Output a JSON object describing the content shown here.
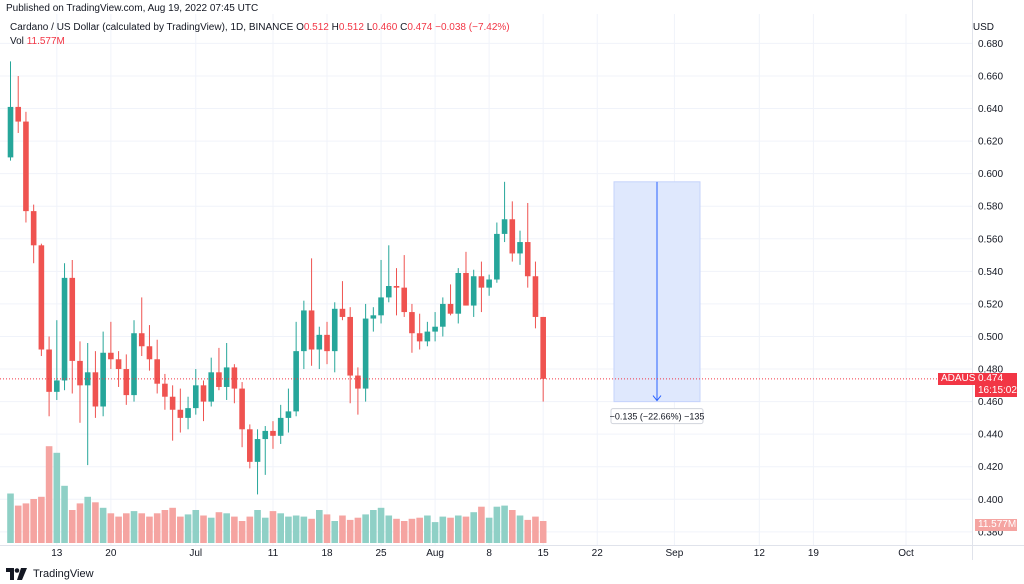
{
  "header": {
    "published": "Published on TradingView.com, Aug 19, 2022 07:45 UTC",
    "symbol_desc": "Cardano / US Dollar (calculated by TradingView), 1D, BINANCE",
    "o_label": "O",
    "o_val": "0.512",
    "h_label": "H",
    "h_val": "0.512",
    "l_label": "L",
    "l_val": "0.460",
    "c_label": "C",
    "c_val": "0.474",
    "change": "−0.038 (−7.42%)",
    "vol_label": "Vol",
    "vol_val": "11.577M"
  },
  "price_axis": {
    "currency": "USD"
  },
  "last_price": {
    "ticker": "ADAUSD",
    "price": "0.474",
    "countdown": "16:15:02"
  },
  "volume_badge": "11.577M",
  "measure": {
    "label": "−0.135 (−22.66%) −135",
    "from": 0.595,
    "to": 0.46
  },
  "footer": {
    "brand": "TradingView"
  },
  "colors": {
    "up": "#26a69a",
    "down": "#ef5350",
    "vol_up": "#8fd0c6",
    "vol_down": "#f5a4a1",
    "measure_fill": "#dfe8fd",
    "measure_line": "#2962ff"
  },
  "chart_data": {
    "type": "candlestick",
    "symbol": "ADAUSD",
    "ylim": [
      0.375,
      0.695
    ],
    "yticks": [
      "0.680",
      "0.660",
      "0.640",
      "0.620",
      "0.600",
      "0.580",
      "0.560",
      "0.540",
      "0.520",
      "0.500",
      "0.480",
      "0.460",
      "0.440",
      "0.420",
      "0.400",
      "0.380"
    ],
    "xticks": [
      {
        "i": 6,
        "label": "13"
      },
      {
        "i": 13,
        "label": "20"
      },
      {
        "i": 24,
        "label": "Jul"
      },
      {
        "i": 34,
        "label": "11"
      },
      {
        "i": 41,
        "label": "18"
      },
      {
        "i": 48,
        "label": "25"
      },
      {
        "i": 55,
        "label": "Aug"
      },
      {
        "i": 62,
        "label": "8"
      },
      {
        "i": 69,
        "label": "15"
      },
      {
        "i": 76,
        "label": "22"
      },
      {
        "i": 86,
        "label": "Sep"
      },
      {
        "i": 97,
        "label": "12"
      },
      {
        "i": 104,
        "label": "19"
      },
      {
        "i": 116,
        "label": "Oct"
      }
    ],
    "candles": [
      [
        0.61,
        0.669,
        0.608,
        0.641
      ],
      [
        0.641,
        0.66,
        0.625,
        0.632
      ],
      [
        0.632,
        0.638,
        0.57,
        0.577
      ],
      [
        0.577,
        0.581,
        0.545,
        0.556
      ],
      [
        0.556,
        0.557,
        0.488,
        0.492
      ],
      [
        0.492,
        0.5,
        0.451,
        0.466
      ],
      [
        0.466,
        0.51,
        0.461,
        0.473
      ],
      [
        0.473,
        0.545,
        0.467,
        0.536
      ],
      [
        0.536,
        0.547,
        0.465,
        0.485
      ],
      [
        0.485,
        0.497,
        0.447,
        0.47
      ],
      [
        0.47,
        0.496,
        0.421,
        0.478
      ],
      [
        0.478,
        0.491,
        0.45,
        0.457
      ],
      [
        0.457,
        0.503,
        0.451,
        0.49
      ],
      [
        0.49,
        0.509,
        0.48,
        0.486
      ],
      [
        0.486,
        0.491,
        0.469,
        0.48
      ],
      [
        0.48,
        0.489,
        0.458,
        0.464
      ],
      [
        0.464,
        0.51,
        0.46,
        0.502
      ],
      [
        0.502,
        0.524,
        0.488,
        0.494
      ],
      [
        0.494,
        0.507,
        0.479,
        0.486
      ],
      [
        0.486,
        0.498,
        0.465,
        0.471
      ],
      [
        0.471,
        0.477,
        0.455,
        0.463
      ],
      [
        0.463,
        0.47,
        0.436,
        0.455
      ],
      [
        0.455,
        0.468,
        0.441,
        0.45
      ],
      [
        0.45,
        0.463,
        0.443,
        0.456
      ],
      [
        0.456,
        0.48,
        0.452,
        0.47
      ],
      [
        0.47,
        0.473,
        0.448,
        0.46
      ],
      [
        0.46,
        0.487,
        0.457,
        0.478
      ],
      [
        0.478,
        0.493,
        0.467,
        0.469
      ],
      [
        0.469,
        0.496,
        0.461,
        0.481
      ],
      [
        0.481,
        0.483,
        0.459,
        0.468
      ],
      [
        0.468,
        0.472,
        0.432,
        0.443
      ],
      [
        0.443,
        0.446,
        0.419,
        0.423
      ],
      [
        0.423,
        0.443,
        0.403,
        0.437
      ],
      [
        0.437,
        0.445,
        0.415,
        0.442
      ],
      [
        0.442,
        0.448,
        0.431,
        0.439
      ],
      [
        0.439,
        0.458,
        0.434,
        0.45
      ],
      [
        0.45,
        0.468,
        0.441,
        0.454
      ],
      [
        0.454,
        0.509,
        0.451,
        0.491
      ],
      [
        0.491,
        0.522,
        0.48,
        0.516
      ],
      [
        0.516,
        0.548,
        0.482,
        0.492
      ],
      [
        0.492,
        0.506,
        0.48,
        0.501
      ],
      [
        0.501,
        0.509,
        0.483,
        0.491
      ],
      [
        0.491,
        0.521,
        0.478,
        0.517
      ],
      [
        0.517,
        0.534,
        0.51,
        0.512
      ],
      [
        0.512,
        0.518,
        0.459,
        0.476
      ],
      [
        0.476,
        0.481,
        0.452,
        0.468
      ],
      [
        0.468,
        0.52,
        0.46,
        0.511
      ],
      [
        0.511,
        0.518,
        0.503,
        0.513
      ],
      [
        0.513,
        0.547,
        0.508,
        0.524
      ],
      [
        0.524,
        0.556,
        0.521,
        0.531
      ],
      [
        0.531,
        0.542,
        0.513,
        0.53
      ],
      [
        0.53,
        0.55,
        0.512,
        0.515
      ],
      [
        0.515,
        0.52,
        0.49,
        0.502
      ],
      [
        0.502,
        0.514,
        0.492,
        0.497
      ],
      [
        0.497,
        0.509,
        0.494,
        0.503
      ],
      [
        0.503,
        0.515,
        0.497,
        0.506
      ],
      [
        0.506,
        0.524,
        0.5,
        0.52
      ],
      [
        0.52,
        0.532,
        0.513,
        0.514
      ],
      [
        0.514,
        0.542,
        0.508,
        0.539
      ],
      [
        0.539,
        0.552,
        0.519,
        0.519
      ],
      [
        0.519,
        0.541,
        0.512,
        0.537
      ],
      [
        0.537,
        0.546,
        0.515,
        0.53
      ],
      [
        0.53,
        0.538,
        0.525,
        0.535
      ],
      [
        0.535,
        0.57,
        0.533,
        0.563
      ],
      [
        0.563,
        0.595,
        0.558,
        0.572
      ],
      [
        0.572,
        0.583,
        0.546,
        0.551
      ],
      [
        0.551,
        0.565,
        0.544,
        0.558
      ],
      [
        0.558,
        0.582,
        0.53,
        0.537
      ],
      [
        0.537,
        0.546,
        0.505,
        0.512
      ],
      [
        0.512,
        0.512,
        0.46,
        0.474
      ]
    ],
    "volumes": [
      0.45,
      0.34,
      0.36,
      0.4,
      0.42,
      0.88,
      0.82,
      0.52,
      0.3,
      0.36,
      0.42,
      0.37,
      0.32,
      0.27,
      0.24,
      0.27,
      0.29,
      0.27,
      0.24,
      0.27,
      0.3,
      0.32,
      0.24,
      0.26,
      0.3,
      0.25,
      0.23,
      0.28,
      0.27,
      0.24,
      0.2,
      0.24,
      0.3,
      0.23,
      0.29,
      0.27,
      0.24,
      0.25,
      0.24,
      0.22,
      0.3,
      0.26,
      0.2,
      0.25,
      0.21,
      0.23,
      0.26,
      0.3,
      0.32,
      0.25,
      0.22,
      0.2,
      0.22,
      0.23,
      0.25,
      0.19,
      0.24,
      0.23,
      0.25,
      0.24,
      0.28,
      0.33,
      0.23,
      0.33,
      0.34,
      0.3,
      0.25,
      0.21,
      0.24,
      0.2
    ]
  }
}
